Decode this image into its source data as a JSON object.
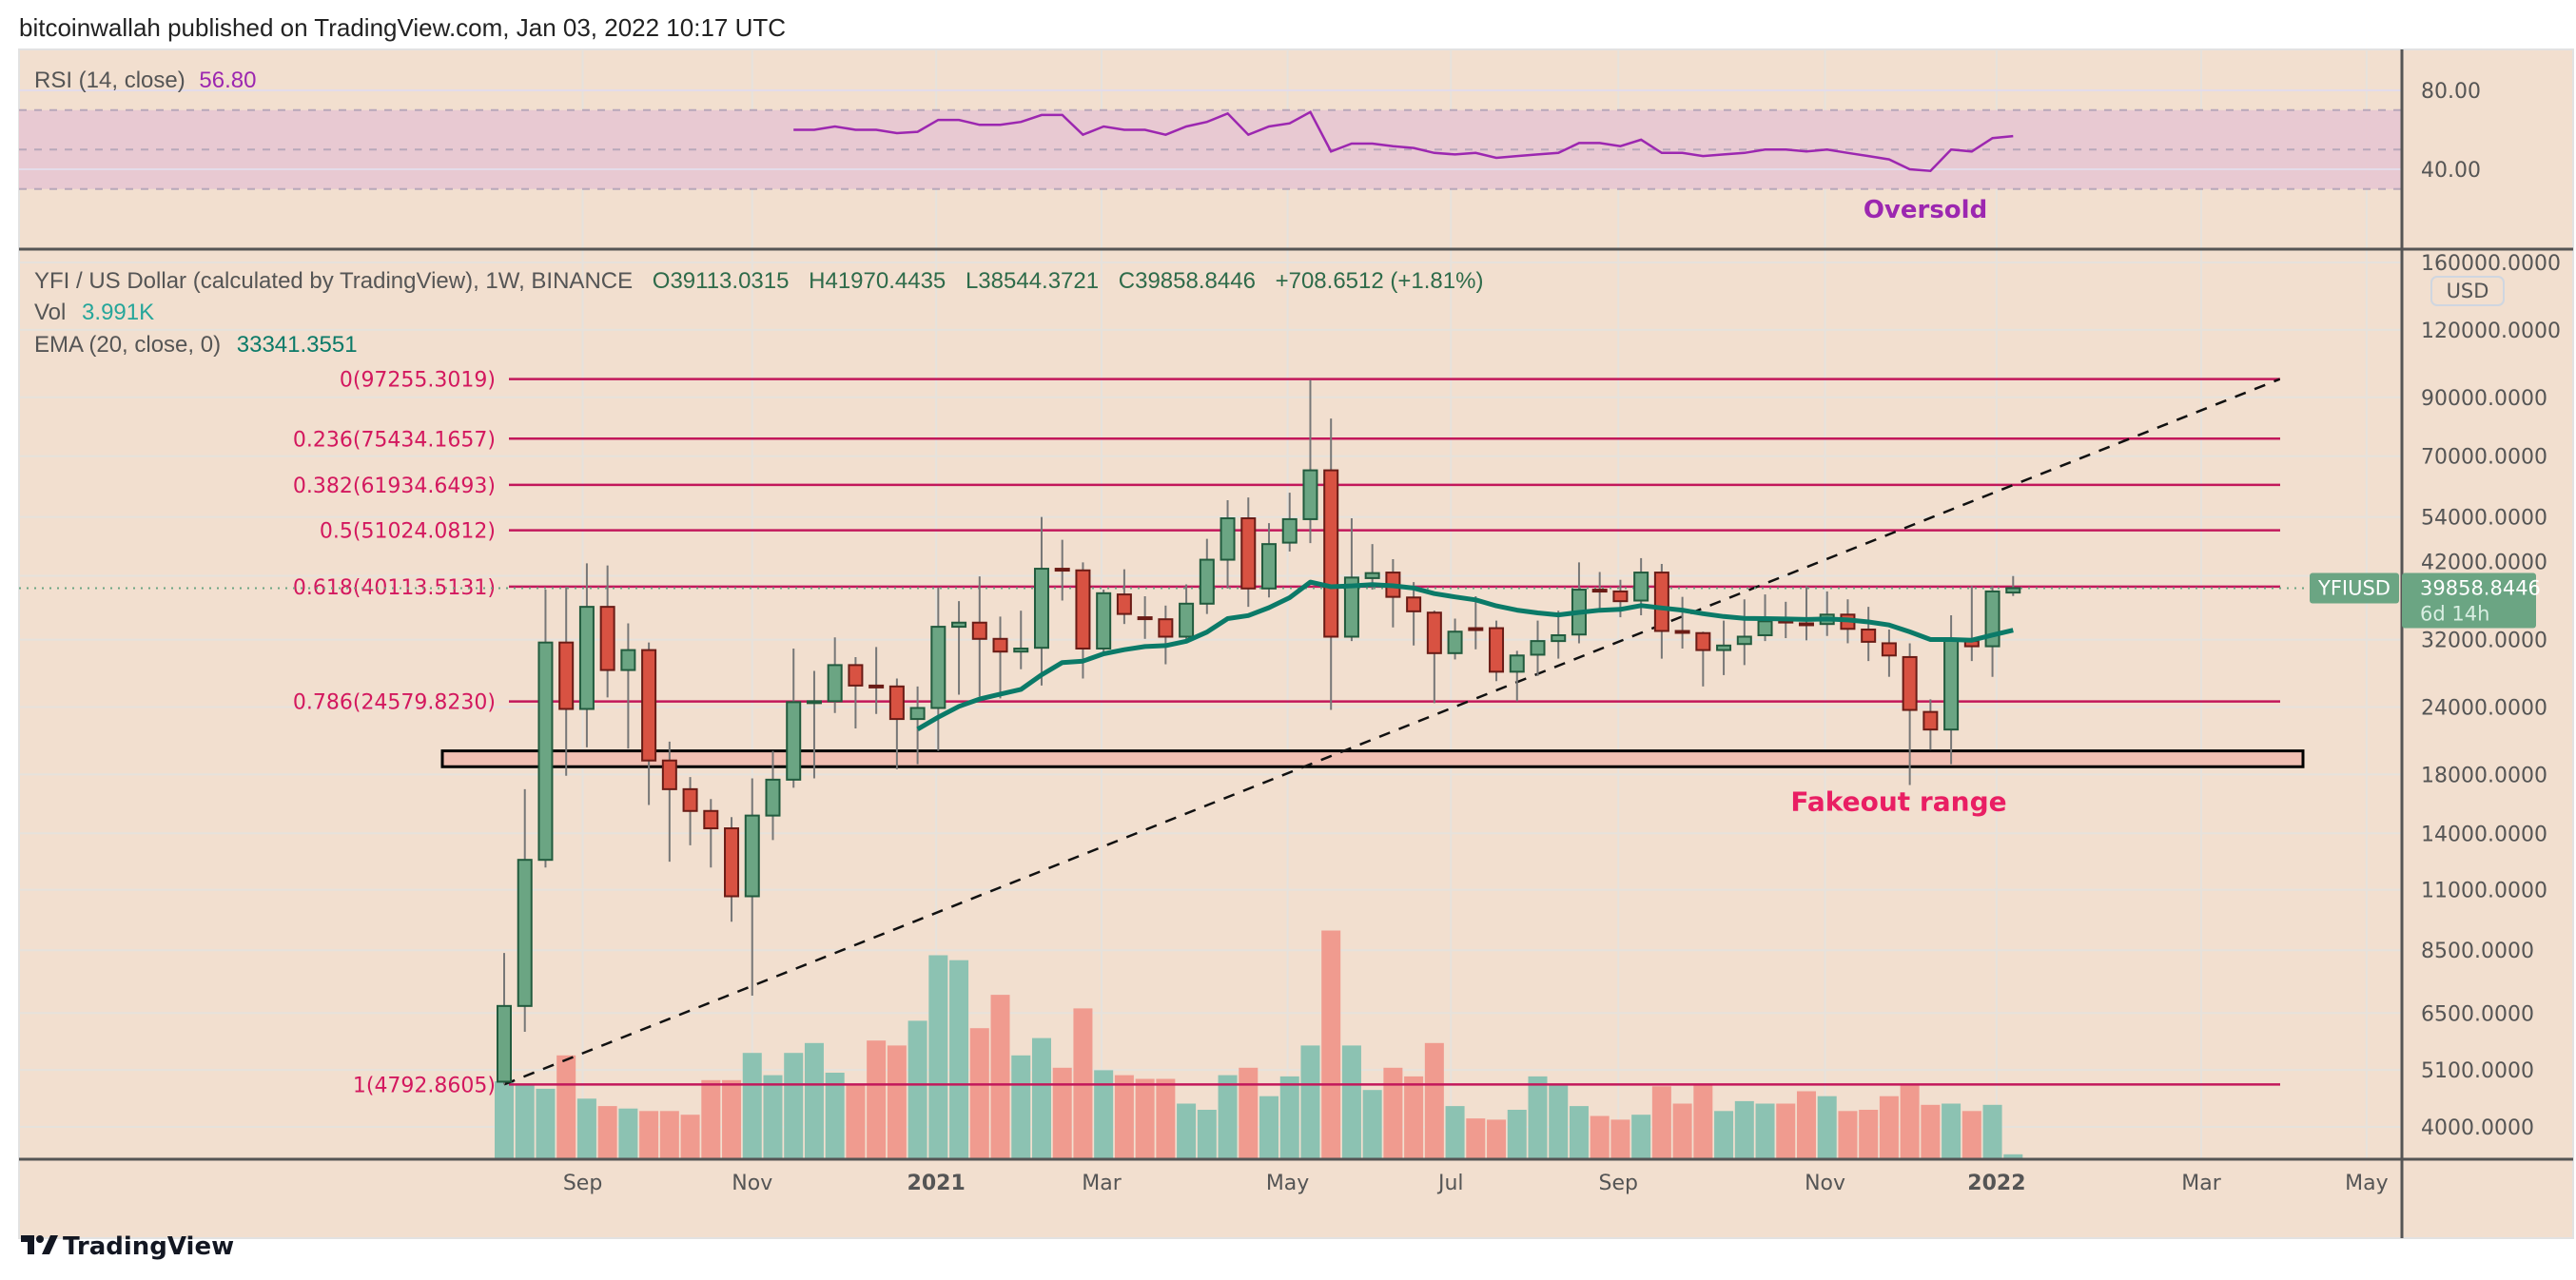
{
  "header": {
    "published": "bitcoinwallah published on TradingView.com, Jan 03, 2022 10:17 UTC"
  },
  "rsi": {
    "label": "RSI (14, close)",
    "value": "56.80",
    "axis_ticks": [
      {
        "label": "80.00",
        "value": 80
      },
      {
        "label": "40.00",
        "value": 40
      }
    ],
    "upper": 70,
    "middle": 50,
    "lower": 30,
    "start_index": 14,
    "values": [
      60,
      60,
      61.7,
      60,
      60,
      58.3,
      59,
      65,
      65,
      62.5,
      62.5,
      64,
      67.5,
      67.5,
      57.5,
      61.7,
      60,
      60,
      57.5,
      61.7,
      64,
      68.3,
      57.5,
      61.7,
      63.3,
      69,
      49,
      53,
      53,
      51.7,
      50.8,
      48.3,
      47.5,
      48.3,
      45.8,
      46.7,
      47.5,
      48.3,
      53.3,
      53.3,
      51.7,
      55,
      48.3,
      48.3,
      46.7,
      47.5,
      48.3,
      50,
      50,
      49,
      50,
      48.3,
      46.7,
      45,
      40,
      39.2,
      50,
      49,
      55.8,
      56.8
    ],
    "annotation": "Oversold"
  },
  "legend": {
    "symbol": "YFI / US Dollar (calculated by TradingView), 1W, BINANCE",
    "open": "O39113.0315",
    "high": "H41970.4435",
    "low": "L38544.3721",
    "close": "C39858.8446",
    "change": "+708.6512 (+1.81%)",
    "vol_label": "Vol",
    "vol_value": "3.991K",
    "ema_label": "EMA (20, close, 0)",
    "ema_value": "33341.3551"
  },
  "price_axis": {
    "currency": "USD",
    "ticks": [
      {
        "label": "160000.0000",
        "value": 160000
      },
      {
        "label": "120000.0000",
        "value": 120000
      },
      {
        "label": "90000.0000",
        "value": 90000
      },
      {
        "label": "70000.0000",
        "value": 70000
      },
      {
        "label": "54000.0000",
        "value": 54000
      },
      {
        "label": "42000.0000",
        "value": 42000
      },
      {
        "label": "32000.0000",
        "value": 32000
      },
      {
        "label": "24000.0000",
        "value": 24000
      },
      {
        "label": "18000.0000",
        "value": 18000
      },
      {
        "label": "14000.0000",
        "value": 14000
      },
      {
        "label": "11000.0000",
        "value": 11000
      },
      {
        "label": "8500.0000",
        "value": 8500
      },
      {
        "label": "6500.0000",
        "value": 6500
      },
      {
        "label": "5100.0000",
        "value": 5100
      },
      {
        "label": "4000.0000",
        "value": 4000
      }
    ]
  },
  "last_price": {
    "symbol": "YFIUSD",
    "price": "39858.8446",
    "countdown": "6d 14h",
    "value": 39858.8446
  },
  "chart_data": {
    "type": "candlestick",
    "title": "YFI / US Dollar, 1W, BINANCE",
    "scale": "log",
    "ylim": [
      3600,
      170000
    ],
    "ohlc_fields": [
      "open",
      "high",
      "low",
      "close"
    ],
    "ohlc": [
      [
        4850,
        8400,
        4793,
        6700
      ],
      [
        6700,
        16900,
        6000,
        12500
      ],
      [
        12500,
        39600,
        12100,
        31600
      ],
      [
        31600,
        40100,
        17900,
        23800
      ],
      [
        23800,
        44300,
        20200,
        36800
      ],
      [
        36800,
        43900,
        25000,
        28100
      ],
      [
        28100,
        34300,
        20100,
        30600
      ],
      [
        30600,
        31600,
        15800,
        19100
      ],
      [
        19100,
        20700,
        12400,
        16900
      ],
      [
        16900,
        17800,
        13300,
        15400
      ],
      [
        15400,
        16200,
        12100,
        14300
      ],
      [
        14300,
        15000,
        9600,
        10700
      ],
      [
        10700,
        17700,
        7000,
        15100
      ],
      [
        15100,
        19900,
        13600,
        17600
      ],
      [
        17600,
        30800,
        17000,
        24500
      ],
      [
        24500,
        28000,
        17700,
        24600
      ],
      [
        24600,
        32300,
        23400,
        28700
      ],
      [
        28700,
        29700,
        21900,
        26300
      ],
      [
        26300,
        31000,
        23300,
        26200
      ],
      [
        26200,
        27100,
        18400,
        22800
      ],
      [
        22800,
        26200,
        18800,
        23900
      ],
      [
        23900,
        40000,
        19900,
        33800
      ],
      [
        33800,
        37700,
        25300,
        34400
      ],
      [
        34400,
        41900,
        25100,
        32100
      ],
      [
        32100,
        35300,
        24900,
        30400
      ],
      [
        30400,
        36200,
        28200,
        30800
      ],
      [
        30900,
        54000,
        26300,
        43300
      ],
      [
        43300,
        49000,
        37800,
        43100
      ],
      [
        43000,
        44500,
        27100,
        30800
      ],
      [
        30800,
        39600,
        30000,
        39000
      ],
      [
        38800,
        43200,
        34200,
        35700
      ],
      [
        35200,
        38500,
        32100,
        35000
      ],
      [
        34900,
        37000,
        28800,
        32400
      ],
      [
        32400,
        40500,
        31700,
        37300
      ],
      [
        37300,
        49200,
        35700,
        45000
      ],
      [
        45000,
        58000,
        39800,
        53700
      ],
      [
        53700,
        58700,
        36800,
        39800
      ],
      [
        39800,
        52600,
        38300,
        48100
      ],
      [
        48400,
        59900,
        46600,
        53500
      ],
      [
        53500,
        96900,
        48300,
        65900
      ],
      [
        65900,
        82200,
        23700,
        32400
      ],
      [
        32400,
        53700,
        31800,
        41700
      ],
      [
        41600,
        48100,
        39600,
        42500
      ],
      [
        42600,
        45100,
        33700,
        38400
      ],
      [
        38300,
        40900,
        31200,
        36100
      ],
      [
        35900,
        36200,
        24400,
        30200
      ],
      [
        30200,
        35000,
        29400,
        33100
      ],
      [
        33600,
        38500,
        30700,
        33400
      ],
      [
        33600,
        34700,
        26800,
        27900
      ],
      [
        27900,
        30500,
        24600,
        29900
      ],
      [
        30000,
        34700,
        27400,
        31800
      ],
      [
        31800,
        36200,
        29500,
        32600
      ],
      [
        32700,
        44500,
        31500,
        39600
      ],
      [
        39600,
        42700,
        36100,
        39400
      ],
      [
        39300,
        41300,
        35200,
        37700
      ],
      [
        37800,
        45300,
        35500,
        42600
      ],
      [
        42600,
        44200,
        29500,
        33200
      ],
      [
        33200,
        38400,
        30800,
        33000
      ],
      [
        32900,
        33100,
        26200,
        30600
      ],
      [
        30600,
        34700,
        27500,
        31200
      ],
      [
        31400,
        38000,
        28700,
        32400
      ],
      [
        32600,
        38800,
        31800,
        34600
      ],
      [
        34700,
        37600,
        32200,
        34500
      ],
      [
        34300,
        40200,
        31900,
        34100
      ],
      [
        34200,
        39300,
        32500,
        35600
      ],
      [
        35600,
        38000,
        31500,
        33500
      ],
      [
        33400,
        36800,
        29200,
        31700
      ],
      [
        31500,
        33400,
        27300,
        29900
      ],
      [
        29700,
        31500,
        17200,
        23700
      ],
      [
        23500,
        24800,
        20000,
        21800
      ],
      [
        21800,
        35500,
        18800,
        32000
      ],
      [
        31800,
        40200,
        29200,
        31100
      ],
      [
        31100,
        40200,
        27300,
        39300
      ],
      [
        39113.0315,
        41970.4435,
        38544.3721,
        39858.8446
      ]
    ],
    "volume_k": [
      63,
      60,
      57,
      84,
      49,
      43,
      41,
      39,
      39,
      36,
      64,
      64,
      86,
      68,
      86,
      94,
      70,
      60,
      96,
      92,
      112,
      165,
      161,
      106,
      133,
      84,
      98,
      74,
      122,
      72,
      68,
      65,
      65,
      45,
      40,
      68,
      74,
      51,
      67,
      92,
      185,
      92,
      56,
      74,
      67,
      94,
      43,
      33,
      32,
      40,
      67,
      61,
      43,
      35,
      32,
      36,
      59,
      45,
      60,
      39,
      47,
      45,
      45,
      55,
      51,
      39,
      40,
      51,
      61,
      44,
      45,
      39,
      44,
      3.991
    ],
    "ema_period": 20,
    "fib_levels": [
      {
        "label": "0(97255.3019)",
        "price": 97255.3019
      },
      {
        "label": "0.236(75434.1657)",
        "price": 75434.1657
      },
      {
        "label": "0.382(61934.6493)",
        "price": 61934.6493
      },
      {
        "label": "0.5(51024.0812)",
        "price": 51024.0812
      },
      {
        "label": "0.618(40113.5131)",
        "price": 40113.5131
      },
      {
        "label": "0.786(24579.8230)",
        "price": 24579.823
      },
      {
        "label": "1(4792.8605)",
        "price": 4792.8605
      }
    ],
    "trendline": {
      "start": {
        "week_index": 0,
        "price": 4792.8605
      },
      "end": {
        "week_index": 85.9,
        "price": 97255.3019
      }
    },
    "fakeout_zone": {
      "label": "Fakeout range",
      "price_low": 18600,
      "price_high": 19900
    },
    "x_ticks": [
      {
        "label": "Sep",
        "week_index": 3.8,
        "major": false
      },
      {
        "label": "Nov",
        "week_index": 12.0,
        "major": false
      },
      {
        "label": "2021",
        "week_index": 20.9,
        "major": true
      },
      {
        "label": "Mar",
        "week_index": 28.9,
        "major": false
      },
      {
        "label": "May",
        "week_index": 37.9,
        "major": false
      },
      {
        "label": "Jul",
        "week_index": 45.8,
        "major": false
      },
      {
        "label": "Sep",
        "week_index": 53.9,
        "major": false
      },
      {
        "label": "Nov",
        "week_index": 63.9,
        "major": false
      },
      {
        "label": "2022",
        "week_index": 72.2,
        "major": true
      },
      {
        "label": "Mar",
        "week_index": 82.1,
        "major": false
      },
      {
        "label": "May",
        "week_index": 90.1,
        "major": false
      }
    ],
    "legend": "top-left"
  },
  "footer": {
    "brand": "TradingView"
  },
  "colors": {
    "background": "#f2dfcf",
    "up": "#6ba583",
    "up_border": "#225b3e",
    "down": "#d85242",
    "down_border": "#6a1c16",
    "vol_up": "#8cc2b2",
    "vol_down": "#f09b8f",
    "ema": "#0b7a68",
    "rsi": "#9c27b0",
    "rsi_band": "#e8c9d2",
    "fib": "#c2185b",
    "fib_text": "#d3185e",
    "fakeout_fill": "#f2c0b3",
    "fakeout_text": "#e91e63",
    "oversold_text": "#9c27b0",
    "legend_values": "#2e6b4a",
    "axis_text": "#555555"
  }
}
